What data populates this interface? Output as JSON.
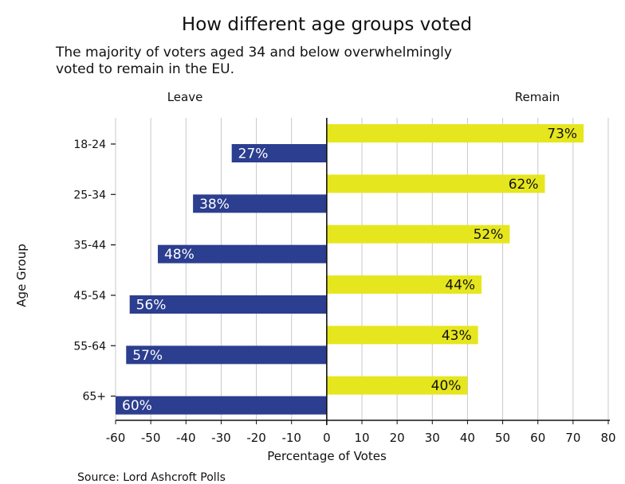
{
  "chart_data": {
    "type": "bar",
    "orientation": "horizontal-diverging",
    "title": "How different age groups voted",
    "subtitle_lines": [
      "The majority of voters aged 34 and below overwhelmingly",
      "voted to remain in the EU."
    ],
    "side_labels": {
      "left": "Leave",
      "right": "Remain"
    },
    "categories": [
      "18-24",
      "25-34",
      "35-44",
      "45-54",
      "55-64",
      "65+"
    ],
    "series": [
      {
        "name": "Leave",
        "values": [
          27,
          38,
          48,
          56,
          57,
          60
        ],
        "color": "#2c3e8f",
        "labels": [
          "27%",
          "38%",
          "48%",
          "56%",
          "57%",
          "60%"
        ]
      },
      {
        "name": "Remain",
        "values": [
          73,
          62,
          52,
          44,
          43,
          40
        ],
        "color": "#e6e61e",
        "labels": [
          "73%",
          "62%",
          "52%",
          "44%",
          "43%",
          "40%"
        ]
      }
    ],
    "xlim": [
      -60,
      80
    ],
    "xticks": [
      -60,
      -50,
      -40,
      -30,
      -20,
      -10,
      0,
      10,
      20,
      30,
      40,
      50,
      60,
      70,
      80
    ],
    "xlabel": "Percentage of Votes",
    "ylabel": "Age Group",
    "grid": "vertical",
    "source": "Source: Lord Ashcroft Polls"
  }
}
